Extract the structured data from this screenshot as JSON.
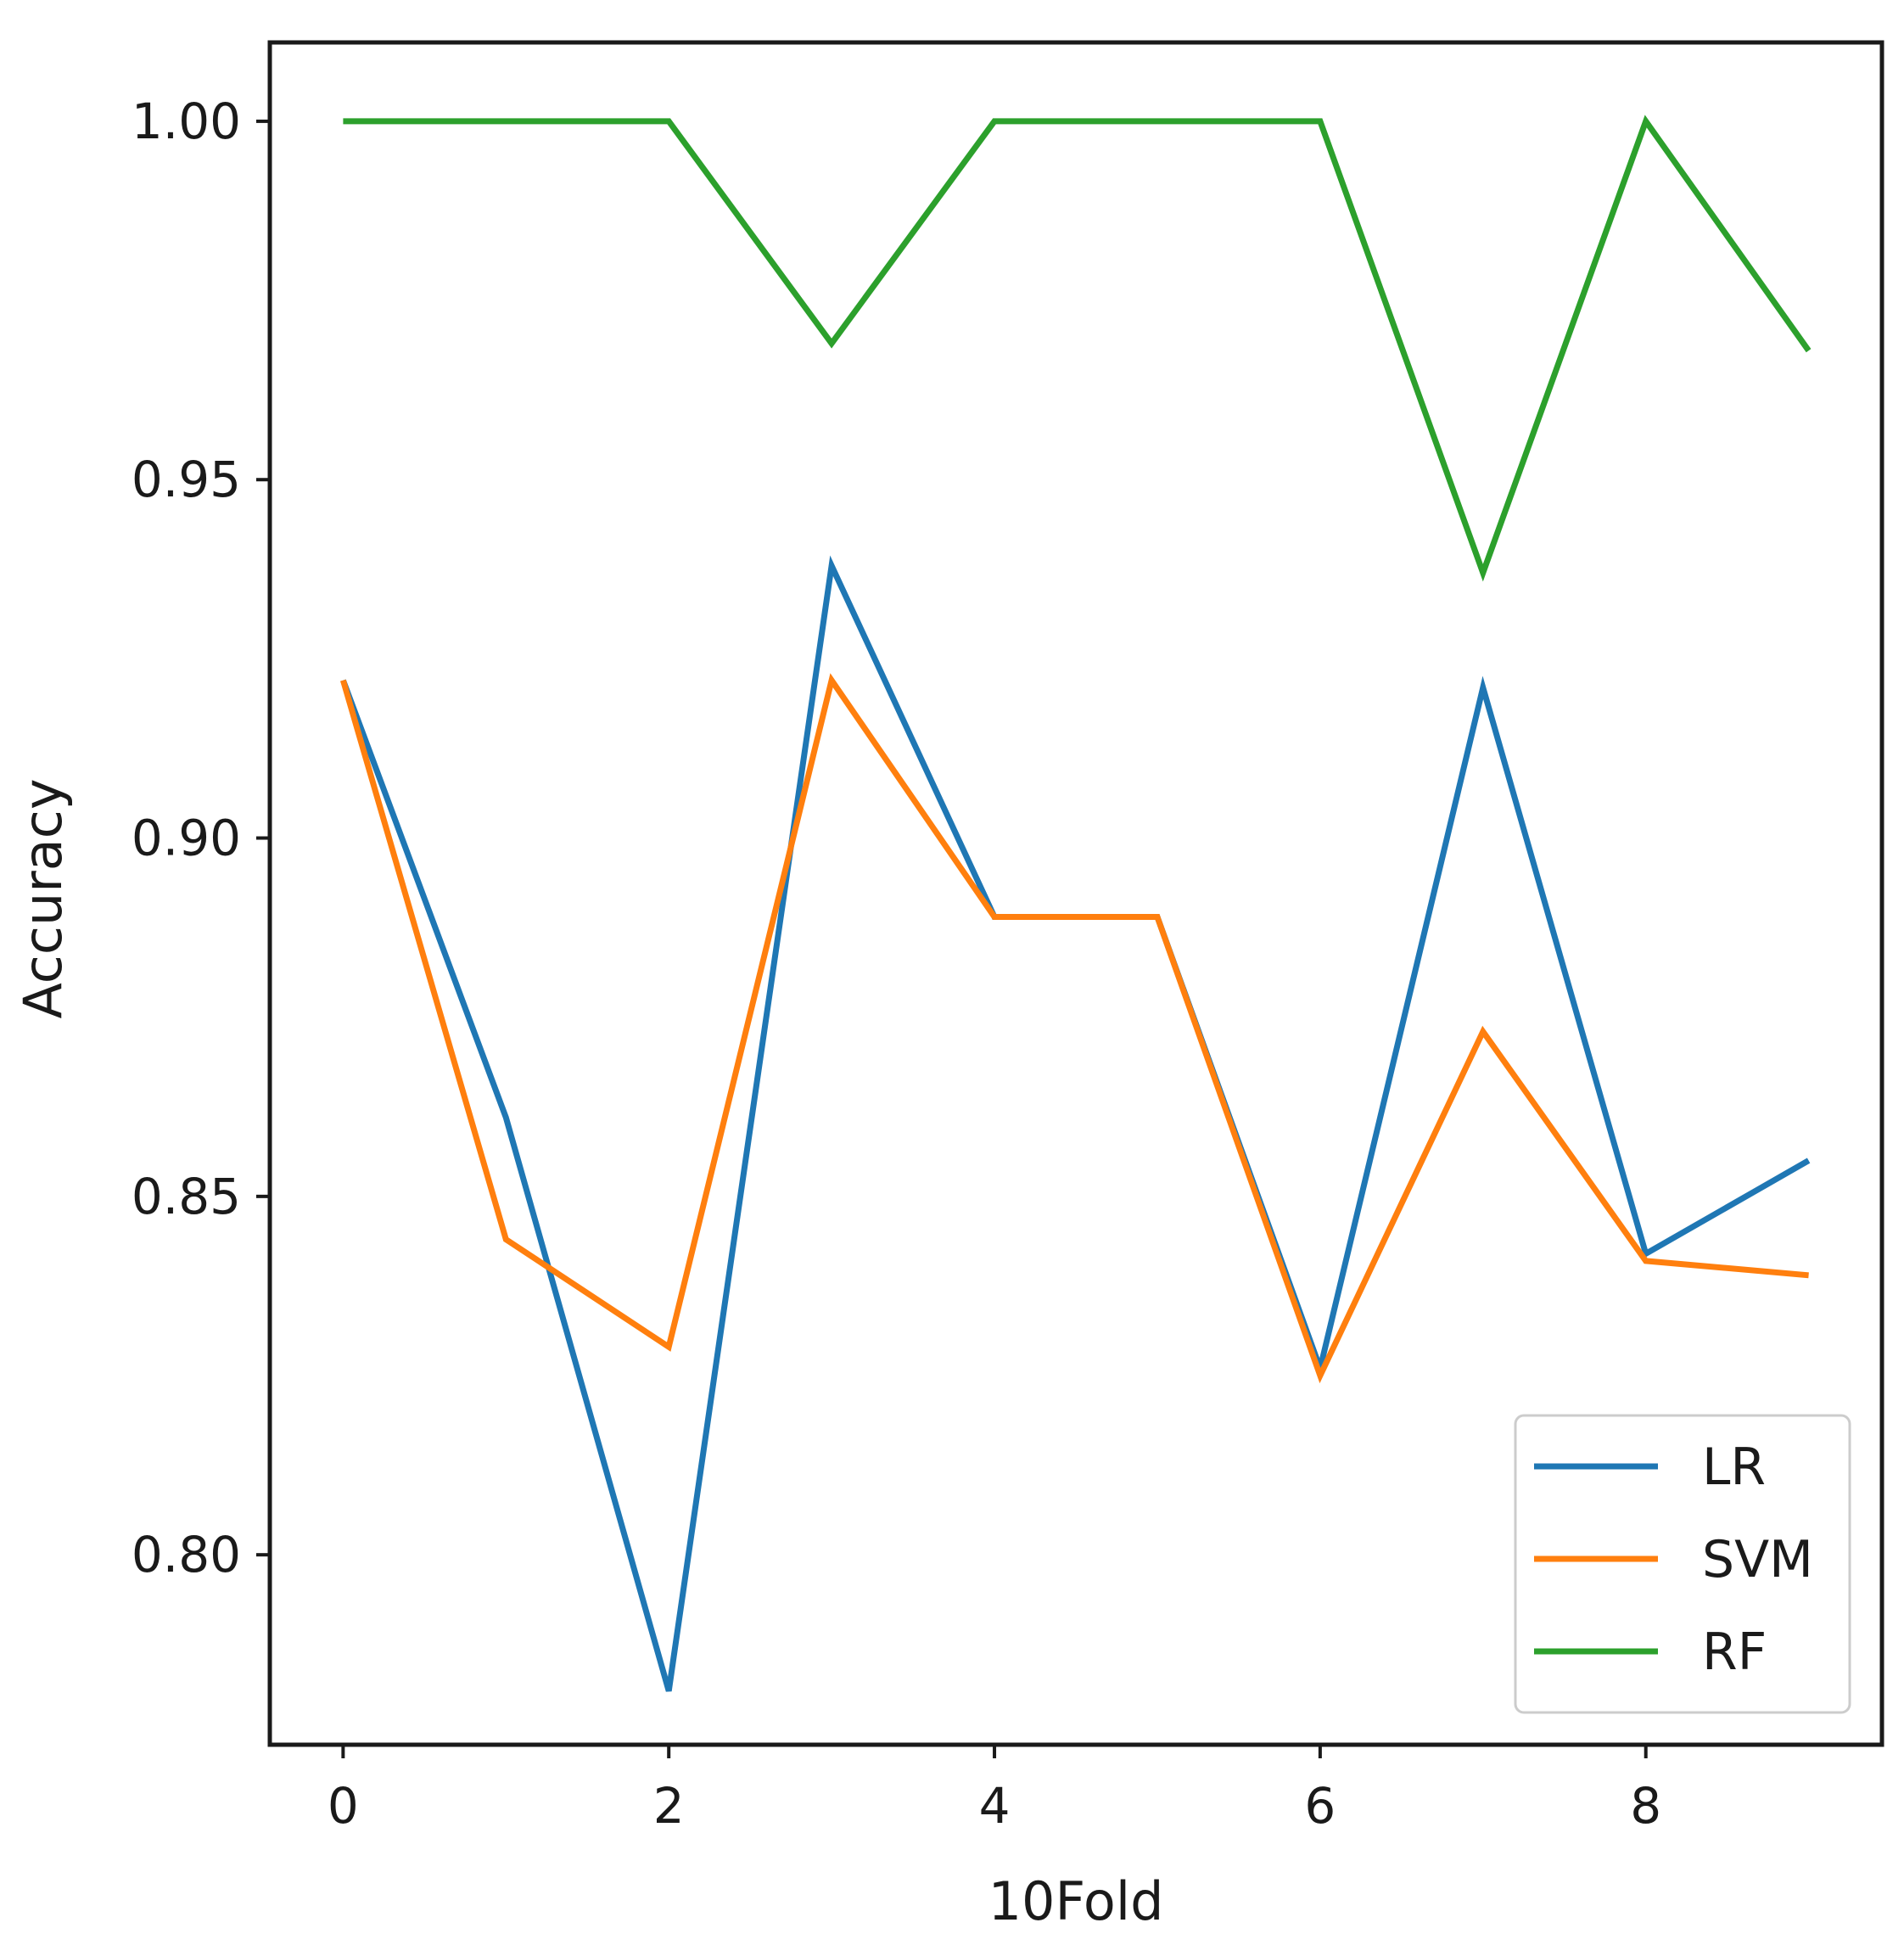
{
  "chart_data": {
    "type": "line",
    "title": "",
    "xlabel": "10Fold",
    "ylabel": "Accuracy",
    "x": [
      0,
      1,
      2,
      3,
      4,
      5,
      6,
      7,
      8,
      9
    ],
    "xlim": [
      -0.45,
      9.45
    ],
    "ylim": [
      0.7735,
      1.011
    ],
    "xticks": [
      0,
      2,
      4,
      6,
      8
    ],
    "yticks": [
      0.8,
      0.85,
      0.9,
      0.95,
      1.0
    ],
    "ytick_labels": [
      "0.80",
      "0.85",
      "0.90",
      "0.95",
      "1.00"
    ],
    "grid": false,
    "legend_position": "lower-right",
    "series": [
      {
        "name": "LR",
        "color": "#1f77b4",
        "values": [
          0.922,
          0.861,
          0.781,
          0.938,
          0.889,
          0.889,
          0.826,
          0.921,
          0.842,
          0.855
        ]
      },
      {
        "name": "SVM",
        "color": "#ff7f0e",
        "values": [
          0.922,
          0.844,
          0.829,
          0.922,
          0.889,
          0.889,
          0.825,
          0.873,
          0.841,
          0.839
        ]
      },
      {
        "name": "RF",
        "color": "#2ca02c",
        "values": [
          1.0,
          1.0,
          1.0,
          0.969,
          1.0,
          1.0,
          1.0,
          0.937,
          1.0,
          0.968
        ]
      }
    ]
  }
}
